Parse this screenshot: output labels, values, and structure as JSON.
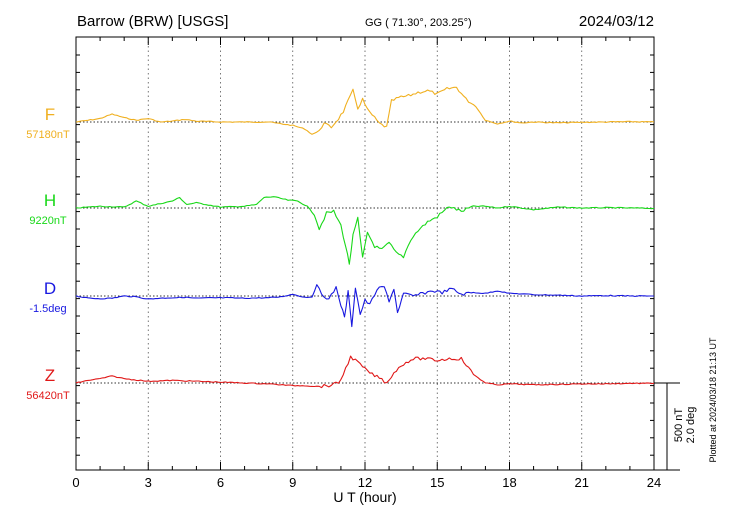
{
  "header": {
    "station": "Barrow (BRW)  [USGS]",
    "coords": "GG ( 71.30°, 203.25°)",
    "date": "2024/03/12"
  },
  "side_note": "Plotted at 2024/03/18 21:13 UT",
  "scale": {
    "line1": "500 nT",
    "line2": "2.0 deg"
  },
  "chart_data": {
    "type": "line",
    "title": "Barrow (BRW)  [USGS]",
    "xlabel": "U T (hour)",
    "ylabel": "",
    "xlim": [
      0,
      24
    ],
    "xticks": [
      "0",
      "3",
      "6",
      "9",
      "12",
      "15",
      "18",
      "21",
      "24"
    ],
    "grid": true,
    "scale_bar": {
      "nT": 500,
      "deg": 2.0
    },
    "series": [
      {
        "name": "F",
        "baseline_label": "57180nT",
        "unit": "nT",
        "baseline": 57180,
        "color": "#f0b020",
        "points": [
          [
            0,
            57180
          ],
          [
            0.5,
            57190
          ],
          [
            1,
            57200
          ],
          [
            1.5,
            57225
          ],
          [
            2,
            57205
          ],
          [
            2.5,
            57190
          ],
          [
            3,
            57200
          ],
          [
            3.5,
            57180
          ],
          [
            4,
            57185
          ],
          [
            4.5,
            57195
          ],
          [
            5,
            57185
          ],
          [
            6,
            57180
          ],
          [
            7,
            57180
          ],
          [
            8,
            57180
          ],
          [
            8.5,
            57170
          ],
          [
            9,
            57160
          ],
          [
            9.5,
            57140
          ],
          [
            9.8,
            57110
          ],
          [
            10,
            57120
          ],
          [
            10.3,
            57170
          ],
          [
            10.6,
            57150
          ],
          [
            10.9,
            57200
          ],
          [
            11.1,
            57240
          ],
          [
            11.3,
            57300
          ],
          [
            11.5,
            57360
          ],
          [
            11.7,
            57260
          ],
          [
            11.9,
            57310
          ],
          [
            12.1,
            57250
          ],
          [
            12.3,
            57220
          ],
          [
            12.6,
            57170
          ],
          [
            12.9,
            57150
          ],
          [
            13.1,
            57300
          ],
          [
            13.4,
            57320
          ],
          [
            13.8,
            57330
          ],
          [
            14.2,
            57350
          ],
          [
            14.6,
            57360
          ],
          [
            15,
            57340
          ],
          [
            15.4,
            57370
          ],
          [
            15.8,
            57380
          ],
          [
            16.2,
            57310
          ],
          [
            16.6,
            57270
          ],
          [
            17,
            57190
          ],
          [
            17.5,
            57170
          ],
          [
            18,
            57185
          ],
          [
            18.5,
            57175
          ],
          [
            19,
            57180
          ],
          [
            20,
            57175
          ],
          [
            21,
            57178
          ],
          [
            22,
            57180
          ],
          [
            23,
            57182
          ],
          [
            24,
            57180
          ]
        ]
      },
      {
        "name": "H",
        "baseline_label": "9220nT",
        "unit": "nT",
        "baseline": 9220,
        "color": "#18d818",
        "points": [
          [
            0,
            9220
          ],
          [
            1,
            9230
          ],
          [
            2,
            9225
          ],
          [
            2.5,
            9260
          ],
          [
            3,
            9230
          ],
          [
            4,
            9260
          ],
          [
            4.3,
            9280
          ],
          [
            4.6,
            9240
          ],
          [
            5,
            9250
          ],
          [
            6,
            9225
          ],
          [
            7,
            9230
          ],
          [
            7.5,
            9240
          ],
          [
            7.8,
            9280
          ],
          [
            8.2,
            9285
          ],
          [
            8.8,
            9265
          ],
          [
            9.2,
            9260
          ],
          [
            9.6,
            9230
          ],
          [
            9.9,
            9180
          ],
          [
            10.1,
            9100
          ],
          [
            10.4,
            9190
          ],
          [
            10.7,
            9200
          ],
          [
            11,
            9120
          ],
          [
            11.2,
            9000
          ],
          [
            11.35,
            8900
          ],
          [
            11.5,
            9060
          ],
          [
            11.7,
            9160
          ],
          [
            11.9,
            8930
          ],
          [
            12.1,
            9080
          ],
          [
            12.4,
            9000
          ],
          [
            12.7,
            8980
          ],
          [
            13,
            9020
          ],
          [
            13.3,
            8960
          ],
          [
            13.6,
            8940
          ],
          [
            13.9,
            9040
          ],
          [
            14.2,
            9090
          ],
          [
            14.6,
            9140
          ],
          [
            15,
            9170
          ],
          [
            15.5,
            9230
          ],
          [
            16,
            9200
          ],
          [
            16.5,
            9230
          ],
          [
            17,
            9230
          ],
          [
            17.5,
            9220
          ],
          [
            18,
            9230
          ],
          [
            19,
            9210
          ],
          [
            20,
            9225
          ],
          [
            21,
            9220
          ],
          [
            22,
            9222
          ],
          [
            23,
            9220
          ],
          [
            24,
            9218
          ]
        ]
      },
      {
        "name": "D",
        "baseline_label": "-1.5deg",
        "unit": "deg",
        "baseline": -1.5,
        "color": "#1818e0",
        "points": [
          [
            0,
            -1.5
          ],
          [
            0.5,
            -1.55
          ],
          [
            1,
            -1.56
          ],
          [
            1.5,
            -1.55
          ],
          [
            2,
            -1.5
          ],
          [
            2.5,
            -1.52
          ],
          [
            3,
            -1.57
          ],
          [
            3.5,
            -1.55
          ],
          [
            4,
            -1.54
          ],
          [
            4.5,
            -1.53
          ],
          [
            5,
            -1.55
          ],
          [
            6,
            -1.54
          ],
          [
            7,
            -1.55
          ],
          [
            8,
            -1.54
          ],
          [
            8.5,
            -1.52
          ],
          [
            9,
            -1.46
          ],
          [
            9.5,
            -1.53
          ],
          [
            9.8,
            -1.52
          ],
          [
            10,
            -1.25
          ],
          [
            10.2,
            -1.45
          ],
          [
            10.5,
            -1.58
          ],
          [
            10.8,
            -1.3
          ],
          [
            11,
            -1.7
          ],
          [
            11.15,
            -2.0
          ],
          [
            11.3,
            -1.4
          ],
          [
            11.45,
            -2.18
          ],
          [
            11.6,
            -1.3
          ],
          [
            11.8,
            -1.92
          ],
          [
            12,
            -1.6
          ],
          [
            12.2,
            -1.7
          ],
          [
            12.5,
            -1.35
          ],
          [
            12.8,
            -1.28
          ],
          [
            13.0,
            -1.65
          ],
          [
            13.2,
            -1.32
          ],
          [
            13.35,
            -1.88
          ],
          [
            13.6,
            -1.45
          ],
          [
            14,
            -1.5
          ],
          [
            14.4,
            -1.44
          ],
          [
            14.8,
            -1.38
          ],
          [
            15.2,
            -1.42
          ],
          [
            15.6,
            -1.33
          ],
          [
            16,
            -1.46
          ],
          [
            16.5,
            -1.42
          ],
          [
            17,
            -1.44
          ],
          [
            17.5,
            -1.38
          ],
          [
            18,
            -1.44
          ],
          [
            18.5,
            -1.45
          ],
          [
            19,
            -1.47
          ],
          [
            20,
            -1.48
          ],
          [
            21,
            -1.5
          ],
          [
            22,
            -1.49
          ],
          [
            23,
            -1.5
          ],
          [
            24,
            -1.5
          ]
        ]
      },
      {
        "name": "Z",
        "baseline_label": "56420nT",
        "unit": "nT",
        "baseline": 56420,
        "color": "#e01818",
        "points": [
          [
            0,
            56420
          ],
          [
            0.5,
            56435
          ],
          [
            1,
            56445
          ],
          [
            1.5,
            56460
          ],
          [
            2,
            56445
          ],
          [
            3,
            56430
          ],
          [
            4,
            56435
          ],
          [
            5,
            56430
          ],
          [
            6,
            56425
          ],
          [
            7,
            56420
          ],
          [
            8,
            56415
          ],
          [
            9,
            56405
          ],
          [
            9.5,
            56405
          ],
          [
            10,
            56400
          ],
          [
            10.5,
            56405
          ],
          [
            10.9,
            56420
          ],
          [
            11.1,
            56470
          ],
          [
            11.4,
            56570
          ],
          [
            11.7,
            56540
          ],
          [
            12,
            56500
          ],
          [
            12.3,
            56470
          ],
          [
            12.6,
            56450
          ],
          [
            12.9,
            56420
          ],
          [
            13.2,
            56480
          ],
          [
            13.6,
            56530
          ],
          [
            14,
            56560
          ],
          [
            14.5,
            56560
          ],
          [
            15,
            56550
          ],
          [
            15.5,
            56560
          ],
          [
            16,
            56560
          ],
          [
            16.5,
            56470
          ],
          [
            17,
            56420
          ],
          [
            17.5,
            56410
          ],
          [
            18,
            56415
          ],
          [
            19,
            56410
          ],
          [
            20,
            56412
          ],
          [
            21,
            56415
          ],
          [
            22,
            56415
          ],
          [
            23,
            56418
          ],
          [
            24,
            56418
          ]
        ]
      }
    ]
  }
}
